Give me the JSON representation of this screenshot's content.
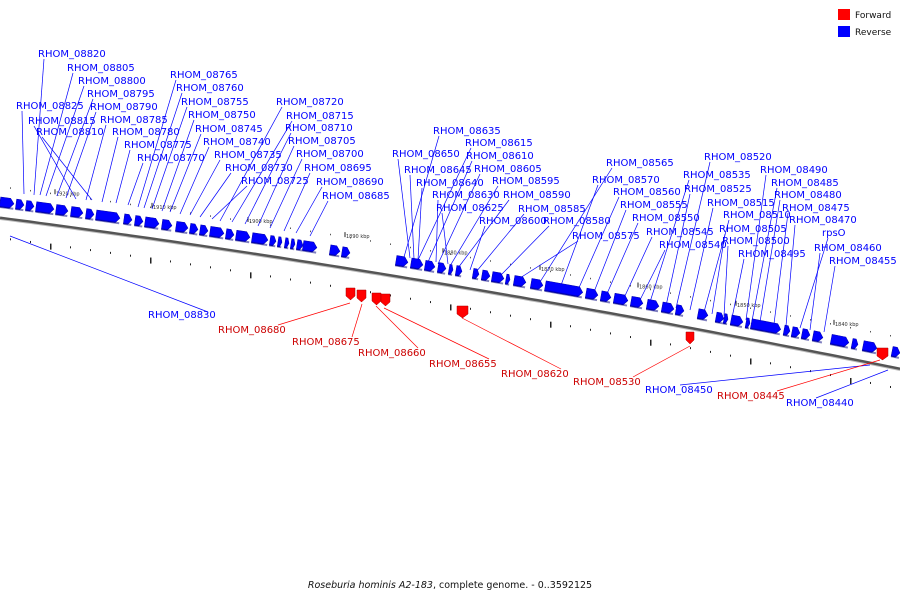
{
  "caption": {
    "organism": "Roseburia hominis A2-183",
    "rest": ", complete genome. - 0..3592125"
  },
  "legend": {
    "forward": {
      "label": "Forward",
      "color": "#ff0000"
    },
    "reverse": {
      "label": "Reverse",
      "color": "#0000ff"
    }
  },
  "axis": {
    "ticks": [
      "1920 kbp",
      "1910 kbp",
      "1900 kbp",
      "1890 kbp",
      "1880 kbp",
      "1870 kbp",
      "1860 kbp",
      "1850 kbp",
      "1840 kbp"
    ]
  },
  "genes": {
    "reverse": [
      "RHOM_08820",
      "RHOM_08805",
      "RHOM_08800",
      "RHOM_08825",
      "RHOM_08795",
      "RHOM_08790",
      "RHOM_08815",
      "RHOM_08785",
      "RHOM_08810",
      "RHOM_08780",
      "RHOM_08775",
      "RHOM_08770",
      "RHOM_08765",
      "RHOM_08760",
      "RHOM_08755",
      "RHOM_08750",
      "RHOM_08745",
      "RHOM_08740",
      "RHOM_08735",
      "RHOM_08730",
      "RHOM_08725",
      "RHOM_08720",
      "RHOM_08715",
      "RHOM_08710",
      "RHOM_08705",
      "RHOM_08700",
      "RHOM_08695",
      "RHOM_08690",
      "RHOM_08685",
      "RHOM_08635",
      "RHOM_08615",
      "RHOM_08650",
      "RHOM_08610",
      "RHOM_08645",
      "RHOM_08605",
      "RHOM_08640",
      "RHOM_08595",
      "RHOM_08630",
      "RHOM_08590",
      "RHOM_08625",
      "RHOM_08585",
      "RHOM_08600",
      "RHOM_08580",
      "RHOM_08575",
      "RHOM_08565",
      "RHOM_08570",
      "RHOM_08560",
      "RHOM_08555",
      "RHOM_08550",
      "RHOM_08545",
      "RHOM_08540",
      "RHOM_08535",
      "RHOM_08525",
      "RHOM_08520",
      "RHOM_08515",
      "RHOM_08510",
      "RHOM_08505",
      "RHOM_08500",
      "RHOM_08495",
      "RHOM_08490",
      "RHOM_08485",
      "RHOM_08480",
      "RHOM_08475",
      "RHOM_08470",
      "rpsO",
      "RHOM_08460",
      "RHOM_08455",
      "RHOM_08830",
      "RHOM_08450",
      "RHOM_08440"
    ],
    "forward": [
      "RHOM_08680",
      "RHOM_08675",
      "RHOM_08660",
      "RHOM_08655",
      "RHOM_08620",
      "RHOM_08530",
      "RHOM_08445"
    ]
  }
}
